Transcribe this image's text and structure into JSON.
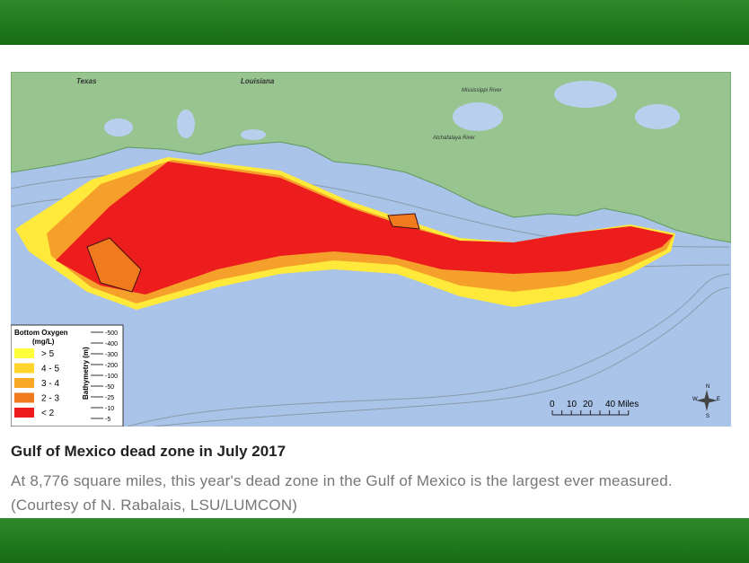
{
  "map": {
    "place_labels": [
      "Texas",
      "Louisiana",
      "Mississippi River",
      "Atchafalaya River"
    ],
    "legend": {
      "title_lines": [
        "Bottom Oxygen",
        "(mg/L)"
      ],
      "entries": [
        {
          "label": "> 5",
          "color": "#ffff3c"
        },
        {
          "label": "4 - 5",
          "color": "#ffd52e"
        },
        {
          "label": "3 - 4",
          "color": "#f9a826"
        },
        {
          "label": "2 - 3",
          "color": "#f07a1e"
        },
        {
          "label": "< 2",
          "color": "#ee1d1d"
        }
      ]
    },
    "bathymetry": {
      "title": "Bathymetry (m)",
      "depths": [
        "-500",
        "-400",
        "-300",
        "-200",
        "-100",
        "-50",
        "-25",
        "-10",
        "-5"
      ]
    },
    "scale_labels": [
      "0",
      "10",
      "20",
      "40 Miles"
    ],
    "compass": [
      "N",
      "E",
      "S",
      "W"
    ]
  },
  "caption": {
    "title": "Gulf of Mexico dead zone in July 2017",
    "text": "At 8,776 square miles, this year's dead zone in the Gulf of Mexico is the largest ever measured. (Courtesy of N. Rabalais, LSU/LUMCON)"
  }
}
